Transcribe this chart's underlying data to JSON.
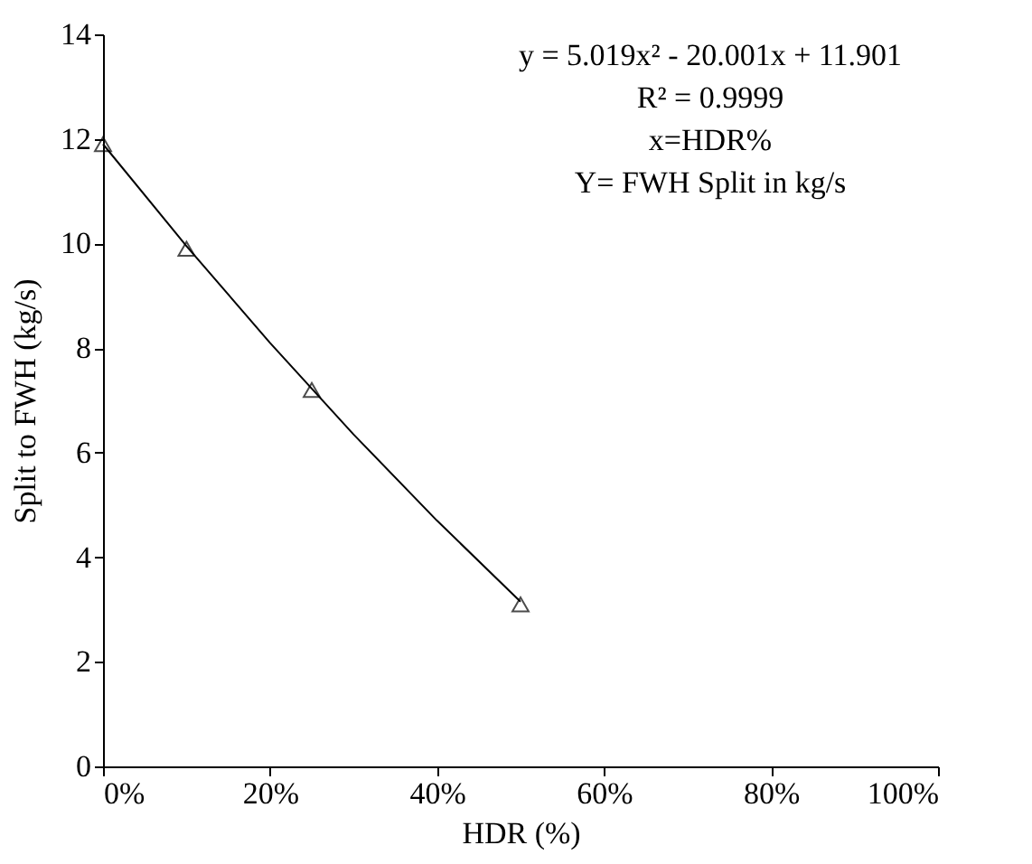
{
  "chart_data": {
    "type": "scatter",
    "xlabel": "HDR (%)",
    "ylabel": "Split to FWH (kg/s)",
    "annotations": [
      "y = 5.019x² - 20.001x + 11.901",
      "R² = 0.9999",
      "x=HDR%",
      "Y= FWH Split in kg/s"
    ],
    "xlim": [
      0,
      1
    ],
    "xticks": [
      {
        "value": 0,
        "label": "0%"
      },
      {
        "value": 0.2,
        "label": "20%"
      },
      {
        "value": 0.4,
        "label": "40%"
      },
      {
        "value": 0.6,
        "label": "60%"
      },
      {
        "value": 0.8,
        "label": "80%"
      },
      {
        "value": 1,
        "label": "100%"
      }
    ],
    "ylim": [
      0,
      14
    ],
    "yticks": [
      0,
      2,
      4,
      6,
      8,
      10,
      12,
      14
    ],
    "grid": false,
    "series": [
      {
        "marker": "triangle",
        "color": "#000000",
        "x": [
          0,
          0.1,
          0.25,
          0.5
        ],
        "values": [
          11.9,
          9.9,
          7.2,
          3.1
        ]
      },
      {
        "type": "line",
        "marker": "none",
        "line_style": "solid",
        "color": "#000000",
        "x": [
          0,
          0.1,
          0.2,
          0.3,
          0.4,
          0.5
        ],
        "values": [
          11.9,
          9.95,
          8.1,
          6.35,
          4.7,
          3.15
        ]
      }
    ]
  }
}
